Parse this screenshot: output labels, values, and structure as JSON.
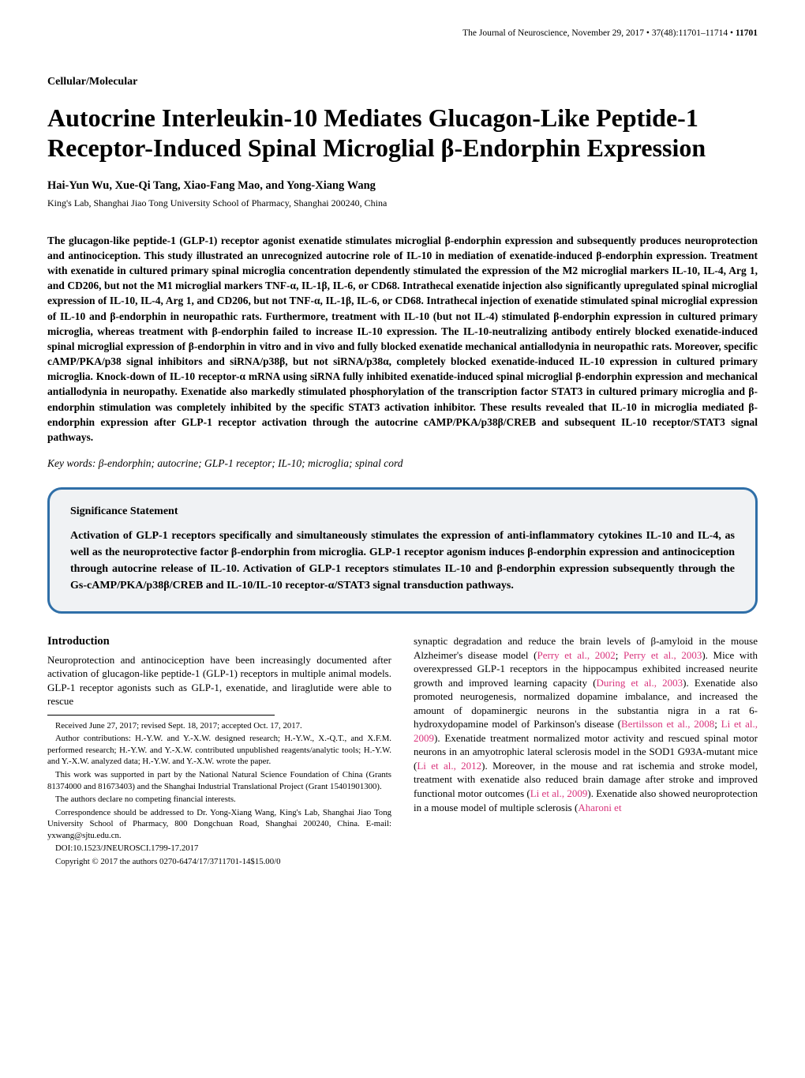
{
  "header": {
    "journal": "The Journal of Neuroscience, November 29, 2017",
    "volume": "37(48):11701–11714",
    "page": "11701"
  },
  "sectionLabel": "Cellular/Molecular",
  "title": "Autocrine Interleukin-10 Mediates Glucagon-Like Peptide-1 Receptor-Induced Spinal Microglial β-Endorphin Expression",
  "authors": "Hai-Yun Wu, Xue-Qi Tang, Xiao-Fang Mao, and Yong-Xiang Wang",
  "affiliation": "King's Lab, Shanghai Jiao Tong University School of Pharmacy, Shanghai 200240, China",
  "abstract": "The glucagon-like peptide-1 (GLP-1) receptor agonist exenatide stimulates microglial β-endorphin expression and subsequently produces neuroprotection and antinociception. This study illustrated an unrecognized autocrine role of IL-10 in mediation of exenatide-induced β-endorphin expression. Treatment with exenatide in cultured primary spinal microglia concentration dependently stimulated the expression of the M2 microglial markers IL-10, IL-4, Arg 1, and CD206, but not the M1 microglial markers TNF-α, IL-1β, IL-6, or CD68. Intrathecal exenatide injection also significantly upregulated spinal microglial expression of IL-10, IL-4, Arg 1, and CD206, but not TNF-α, IL-1β, IL-6, or CD68. Intrathecal injection of exenatide stimulated spinal microglial expression of IL-10 and β-endorphin in neuropathic rats. Furthermore, treatment with IL-10 (but not IL-4) stimulated β-endorphin expression in cultured primary microglia, whereas treatment with β-endorphin failed to increase IL-10 expression. The IL-10-neutralizing antibody entirely blocked exenatide-induced spinal microglial expression of β-endorphin in vitro and in vivo and fully blocked exenatide mechanical antiallodynia in neuropathic rats. Moreover, specific cAMP/PKA/p38 signal inhibitors and siRNA/p38β, but not siRNA/p38α, completely blocked exenatide-induced IL-10 expression in cultured primary microglia. Knock-down of IL-10 receptor-α mRNA using siRNA fully inhibited exenatide-induced spinal microglial β-endorphin expression and mechanical antiallodynia in neuropathy. Exenatide also markedly stimulated phosphorylation of the transcription factor STAT3 in cultured primary microglia and β-endorphin stimulation was completely inhibited by the specific STAT3 activation inhibitor. These results revealed that IL-10 in microglia mediated β-endorphin expression after GLP-1 receptor activation through the autocrine cAMP/PKA/p38β/CREB and subsequent IL-10 receptor/STAT3 signal pathways.",
  "keywords": "Key words:  β-endorphin; autocrine; GLP-1 receptor; IL-10; microglia; spinal cord",
  "significance": {
    "title": "Significance Statement",
    "body": "Activation of GLP-1 receptors specifically and simultaneously stimulates the expression of anti-inflammatory cytokines IL-10 and IL-4, as well as the neuroprotective factor β-endorphin from microglia. GLP-1 receptor agonism induces β-endorphin expression and antinociception through autocrine release of IL-10. Activation of GLP-1 receptors stimulates IL-10 and β-endorphin expression subsequently through the Gs-cAMP/PKA/p38β/CREB and IL-10/IL-10 receptor-α/STAT3 signal transduction pathways."
  },
  "introduction": {
    "heading": "Introduction",
    "leftPara": "Neuroprotection and antinociception have been increasingly documented after activation of glucagon-like peptide-1 (GLP-1) receptors in multiple animal models. GLP-1 receptor agonists such as GLP-1, exenatide, and liraglutide were able to rescue",
    "rightParaBeforeRef1": "synaptic degradation and reduce the brain levels of β-amyloid in the mouse Alzheimer's disease model (",
    "ref1": "Perry et al., 2002",
    "afterRef1": "; ",
    "ref2": "Perry et al., 2003",
    "afterRef2": "). Mice with overexpressed GLP-1 receptors in the hippocampus exhibited increased neurite growth and improved learning capacity (",
    "ref3": "During et al., 2003",
    "afterRef3": "). Exenatide also promoted neurogenesis, normalized dopamine imbalance, and increased the amount of dopaminergic neurons in the substantia nigra in a rat 6-hydroxydopamine model of Parkinson's disease (",
    "ref4": "Bertilsson et al., 2008",
    "afterRef4": "; ",
    "ref5": "Li et al., 2009",
    "afterRef5": "). Exenatide treatment normalized motor activity and rescued spinal motor neurons in an amyotrophic lateral sclerosis model in the SOD1 G93A-mutant mice (",
    "ref6": "Li et al., 2012",
    "afterRef6": "). Moreover, in the mouse and rat ischemia and stroke model, treatment with exenatide also reduced brain damage after stroke and improved functional motor outcomes (",
    "ref7": "Li et al., 2009",
    "afterRef7": "). Exenatide also showed neuroprotection in a mouse model of multiple sclerosis (",
    "ref8": "Aharoni et"
  },
  "footnotes": {
    "received": "Received June 27, 2017; revised Sept. 18, 2017; accepted Oct. 17, 2017.",
    "contributions": "Author contributions: H.-Y.W. and Y.-X.W. designed research; H.-Y.W., X.-Q.T., and X.F.M. performed research; H.-Y.W. and Y.-X.W. contributed unpublished reagents/analytic tools; H.-Y.W. and Y.-X.W. analyzed data; H.-Y.W. and Y.-X.W. wrote the paper.",
    "funding": "This work was supported in part by the National Natural Science Foundation of China (Grants 81374000 and 81673403) and the Shanghai Industrial Translational Project (Grant 15401901300).",
    "conflict": "The authors declare no competing financial interests.",
    "correspondence": "Correspondence should be addressed to Dr. Yong-Xiang Wang, King's Lab, Shanghai Jiao Tong University School of Pharmacy, 800 Dongchuan Road, Shanghai 200240, China. E-mail: yxwang@sjtu.edu.cn.",
    "doi": "DOI:10.1523/JNEUROSCI.1799-17.2017",
    "copyright": "Copyright © 2017 the authors   0270-6474/17/3711701-14$15.00/0"
  }
}
